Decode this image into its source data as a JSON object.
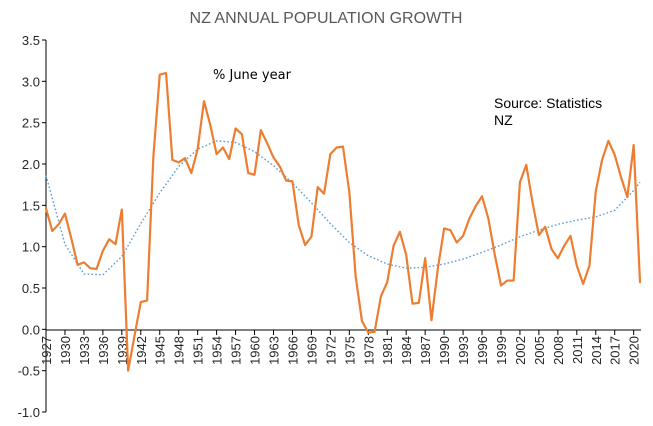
{
  "chart_data": {
    "type": "line",
    "title": "NZ ANNUAL POPULATION GROWTH",
    "xlabel": "",
    "ylabel": "",
    "ylim": [
      -1.0,
      3.5
    ],
    "yticks": [
      3.5,
      3.0,
      2.5,
      2.0,
      1.5,
      1.0,
      0.5,
      0.0,
      -0.5,
      -1.0
    ],
    "ytick_labels": [
      "3.5",
      "3.0",
      "2.5",
      "2.0",
      "1.5",
      "1.0",
      "0.5",
      "0.0",
      "-0.5",
      "-1.0"
    ],
    "xlim": [
      1927,
      2021
    ],
    "xtick_labels": [
      "1927",
      "1930",
      "1933",
      "1936",
      "1939",
      "1942",
      "1945",
      "1948",
      "1951",
      "1954",
      "1957",
      "1960",
      "1963",
      "1966",
      "1969",
      "1972",
      "1975",
      "1978",
      "1981",
      "1984",
      "1987",
      "1990",
      "1993",
      "1996",
      "1999",
      "2002",
      "2005",
      "2008",
      "2011",
      "2014",
      "2017",
      "2020"
    ],
    "grid": false,
    "annotations": {
      "unit_note": "% June year",
      "source_line1": "Source: Statistics",
      "source_line2": "NZ"
    },
    "colors": {
      "series": "#ED7D31",
      "trend": "#5B9BD5",
      "axis": "#000000"
    },
    "series": [
      {
        "x": [
          1927,
          1928,
          1929,
          1930,
          1931,
          1932,
          1933,
          1934,
          1935,
          1936,
          1937,
          1938,
          1939,
          1940,
          1941,
          1942,
          1943,
          1944,
          1945,
          1946,
          1947,
          1948,
          1949,
          1950,
          1951,
          1952,
          1953,
          1954,
          1955,
          1956,
          1957,
          1958,
          1959,
          1960,
          1961,
          1962,
          1963,
          1964,
          1965,
          1966,
          1967,
          1968,
          1969,
          1970,
          1971,
          1972,
          1973,
          1974,
          1975,
          1976,
          1977,
          1978,
          1979,
          1980,
          1981,
          1982,
          1983,
          1984,
          1985,
          1986,
          1987,
          1988,
          1989,
          1990,
          1991,
          1992,
          1993,
          1994,
          1995,
          1996,
          1997,
          1998,
          1999,
          2000,
          2001,
          2002,
          2003,
          2004,
          2005,
          2006,
          2007,
          2008,
          2009,
          2010,
          2011,
          2012,
          2013,
          2014,
          2015,
          2016,
          2017,
          2018,
          2019,
          2020,
          2021
        ],
        "values": [
          1.46,
          1.19,
          1.27,
          1.4,
          1.1,
          0.78,
          0.81,
          0.74,
          0.73,
          0.95,
          1.09,
          1.03,
          1.45,
          -0.5,
          -0.08,
          0.33,
          0.35,
          2.1,
          3.08,
          3.1,
          2.05,
          2.02,
          2.07,
          1.89,
          2.18,
          2.76,
          2.47,
          2.12,
          2.2,
          2.06,
          2.43,
          2.36,
          1.89,
          1.87,
          2.41,
          2.25,
          2.08,
          1.97,
          1.8,
          1.79,
          1.26,
          1.02,
          1.12,
          1.72,
          1.64,
          2.12,
          2.2,
          2.21,
          1.66,
          0.64,
          0.1,
          -0.04,
          -0.03,
          0.4,
          0.57,
          1.01,
          1.18,
          0.9,
          0.31,
          0.32,
          0.86,
          0.11,
          0.73,
          1.22,
          1.2,
          1.05,
          1.13,
          1.34,
          1.49,
          1.61,
          1.34,
          0.91,
          0.53,
          0.59,
          0.59,
          1.78,
          1.99,
          1.53,
          1.14,
          1.24,
          0.97,
          0.86,
          1.01,
          1.13,
          0.77,
          0.55,
          0.77,
          1.67,
          2.05,
          2.28,
          2.11,
          1.84,
          1.6,
          2.23,
          0.57
        ]
      },
      {
        "x": [
          1927,
          1930,
          1933,
          1936,
          1939,
          1942,
          1945,
          1948,
          1951,
          1954,
          1957,
          1960,
          1963,
          1966,
          1969,
          1972,
          1975,
          1978,
          1981,
          1984,
          1987,
          1990,
          1993,
          1996,
          1999,
          2002,
          2005,
          2008,
          2011,
          2014,
          2017,
          2020,
          2021
        ],
        "values": [
          1.86,
          1.03,
          0.67,
          0.66,
          0.88,
          1.28,
          1.65,
          1.97,
          2.18,
          2.28,
          2.26,
          2.15,
          1.98,
          1.77,
          1.53,
          1.28,
          1.05,
          0.89,
          0.79,
          0.74,
          0.75,
          0.79,
          0.85,
          0.93,
          1.02,
          1.12,
          1.2,
          1.27,
          1.32,
          1.36,
          1.44,
          1.68,
          1.78
        ]
      }
    ]
  }
}
